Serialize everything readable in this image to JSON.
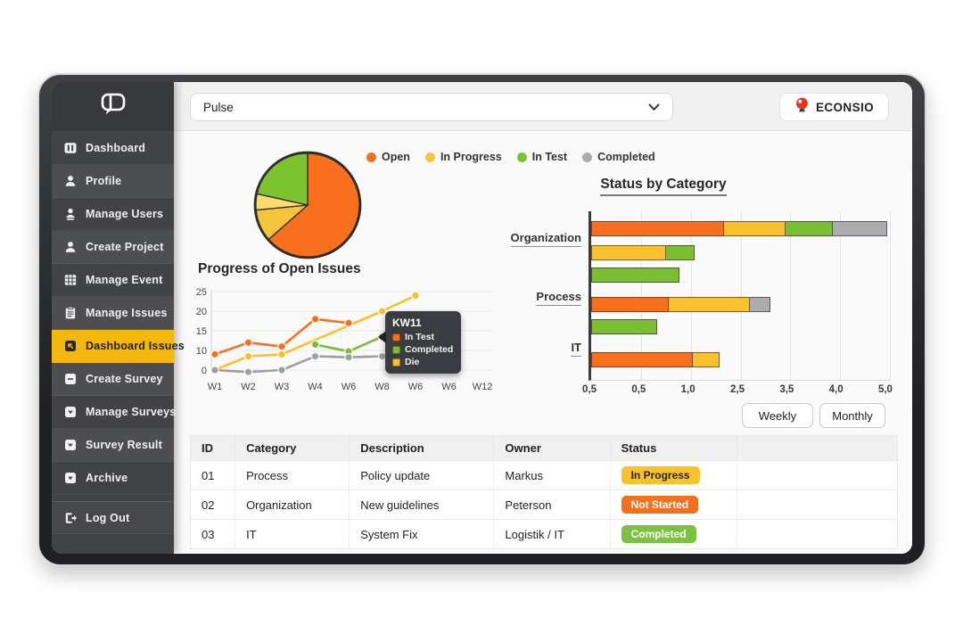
{
  "brand": {
    "name": "ECONSIO",
    "icon": "balloon-icon",
    "color": "#E8321A"
  },
  "topbar": {
    "project_select": {
      "value": "Pulse"
    }
  },
  "sidebar": {
    "items": [
      {
        "label": "Dashboard",
        "icon": "dashboard-icon",
        "active": false
      },
      {
        "label": "Profile",
        "icon": "user-icon",
        "active": false
      },
      {
        "label": "Manage Users",
        "icon": "users-icon",
        "active": false
      },
      {
        "label": "Create Project",
        "icon": "user-icon",
        "active": false
      },
      {
        "label": "Manage Event",
        "icon": "grid-icon",
        "active": false
      },
      {
        "label": "Manage Issues",
        "icon": "clipboard-icon",
        "active": false
      },
      {
        "label": "Dashboard Issues",
        "icon": "arrow-square-icon",
        "active": true
      },
      {
        "label": "Create Survey",
        "icon": "minus-square-icon",
        "active": false
      },
      {
        "label": "Manage Surveys",
        "icon": "caret-square-icon",
        "active": false
      },
      {
        "label": "Survey Result",
        "icon": "caret-square-icon",
        "active": false
      },
      {
        "label": "Archive",
        "icon": "caret-square-icon",
        "active": false
      }
    ],
    "logout": {
      "label": "Log Out",
      "icon": "logout-icon"
    },
    "active_color": "#F4B70C"
  },
  "legend": [
    {
      "label": "Open",
      "color": "#F8701D"
    },
    {
      "label": "In Progress",
      "color": "#F6C33C"
    },
    {
      "label": "In Test",
      "color": "#7CC32F"
    },
    {
      "label": "Completed",
      "color": "#ABADB0"
    }
  ],
  "chart_data": [
    {
      "type": "pie",
      "slices": [
        {
          "label": "Open",
          "pct": 63.5,
          "color": "#F8701D"
        },
        {
          "label": "In Progress",
          "pct": 10,
          "color": "#F6C33C"
        },
        {
          "label": "In Progress (light)",
          "pct": 5,
          "color": "#FADD6E"
        },
        {
          "label": "In Test",
          "pct": 21.5,
          "color": "#7CC32F"
        }
      ]
    },
    {
      "type": "line",
      "title": "Progress of Open Issues",
      "x_labels": [
        "W1",
        "W2",
        "W3",
        "W4",
        "W6",
        "W8",
        "W6",
        "W6",
        "W12"
      ],
      "y_ticks": [
        25,
        20,
        15,
        10,
        0
      ],
      "grid": true,
      "series": [
        {
          "name": "line-yellow",
          "color": "#F9BF2D",
          "values": [
            0,
            7,
            8,
            null,
            null,
            20,
            24,
            null,
            null
          ]
        },
        {
          "name": "line-orange",
          "color": "#F8701D",
          "values": [
            8,
            12,
            11,
            18,
            17,
            null,
            null,
            null,
            null
          ]
        },
        {
          "name": "line-green",
          "color": "#7CBE31",
          "values": [
            null,
            null,
            null,
            11.5,
            9.5,
            13.5,
            12.5,
            null,
            null
          ]
        },
        {
          "name": "line-gray",
          "color": "#9DA0A3",
          "values": [
            0,
            -1,
            0,
            7,
            6.5,
            7,
            7,
            7,
            null
          ]
        }
      ]
    },
    {
      "type": "bar",
      "title": "Status by Category",
      "orientation": "horizontal-stacked",
      "categories": [
        "Organization",
        "Process",
        "IT"
      ],
      "x_ticks": [
        "0,5",
        "0,5",
        "1,0",
        "2,5",
        "3,5",
        "4,0",
        "5,0"
      ],
      "status_colors": {
        "Open": "#F8701D",
        "In Progress": "#F9C12E",
        "In Test": "#7CBE31",
        "Completed": "#ABADB0"
      },
      "rows": [
        {
          "group": "Organization",
          "segments": [
            {
              "status": "Open",
              "pct": 44.5
            },
            {
              "status": "In Progress",
              "pct": 20.5
            },
            {
              "status": "In Test",
              "pct": 16
            },
            {
              "status": "Completed",
              "pct": 18
            }
          ]
        },
        {
          "group": "Organization",
          "segments": [
            {
              "status": "In Progress",
              "pct": 25
            },
            {
              "status": "In Test",
              "pct": 9.5
            }
          ]
        },
        {
          "group": "Organization",
          "segments": [
            {
              "status": "In Test",
              "pct": 29.5
            }
          ]
        },
        {
          "group": "Process",
          "segments": [
            {
              "status": "Open",
              "pct": 26
            },
            {
              "status": "In Progress",
              "pct": 27
            },
            {
              "status": "Completed",
              "pct": 7
            }
          ]
        },
        {
          "group": "Process",
          "segments": [
            {
              "status": "In Test",
              "pct": 22
            }
          ]
        },
        {
          "group": "IT",
          "segments": [
            {
              "status": "Open",
              "pct": 34
            },
            {
              "status": "In Progress",
              "pct": 9
            }
          ]
        }
      ]
    }
  ],
  "tooltip": {
    "title": "KW11",
    "items": [
      {
        "label": "In Test",
        "color": "#F8701D"
      },
      {
        "label": "Completed",
        "color": "#7CBE31"
      },
      {
        "label": "Die",
        "color": "#F9C12E"
      }
    ]
  },
  "controls": {
    "weekly": "Weekly",
    "monthly": "Monthly"
  },
  "table": {
    "headers": [
      "ID",
      "Category",
      "Description",
      "Owner",
      "Status",
      ""
    ],
    "rows": [
      {
        "id": "01",
        "category": "Process",
        "description": "Policy update",
        "owner": "Markus",
        "status": "In Progress"
      },
      {
        "id": "02",
        "category": "Organization",
        "description": "New guidelines",
        "owner": "Peterson",
        "status": "Not Started"
      },
      {
        "id": "03",
        "category": "IT",
        "description": "System Fix",
        "owner": "Logistik / IT",
        "status": "Completed"
      }
    ],
    "status_styles": {
      "In Progress": {
        "bg": "#F7C32B",
        "text": "#222222"
      },
      "Not Started": {
        "bg": "#F4701F",
        "text": "#FFFFFF"
      },
      "Completed": {
        "bg": "#7CC141",
        "text": "#FFFFFF"
      }
    }
  }
}
